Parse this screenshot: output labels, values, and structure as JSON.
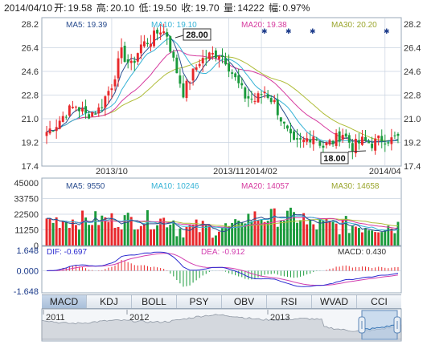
{
  "header": {
    "date": "2014/04/10",
    "open_label": "开:",
    "open": "19.58",
    "high_label": "高:",
    "high": "20.10",
    "low_label": "低:",
    "low": "19.50",
    "close_label": "收:",
    "close": "19.70",
    "volume_label": "量:",
    "volume": "14222",
    "change_label": "幅:",
    "change": "0.97%"
  },
  "colors": {
    "up": "#e8282b",
    "down": "#1a9a3c",
    "ma5": "#2a4d8f",
    "ma10": "#36b3d6",
    "ma20": "#d63a9e",
    "ma30": "#b0bd3a",
    "dif": "#2b2bd0",
    "dea": "#d23fb0",
    "grid": "#c9d3e0",
    "frame": "#9aa8b8"
  },
  "chart_data": [
    {
      "type": "candlestick",
      "name": "price",
      "legend": {
        "ma5": "MA5: 19.39",
        "ma10": "MA10: 19.10",
        "ma20": "MA20: 19.38",
        "ma30": "MA30: 20.20"
      },
      "y_ticks": [
        "28.2",
        "26.4",
        "24.6",
        "22.8",
        "21.0",
        "19.2",
        "17.4"
      ],
      "ylim": [
        17.4,
        28.2
      ],
      "x_ticks": [
        "2013/10",
        "2013/11",
        "2014/02",
        "2014/04"
      ],
      "annotations": {
        "max_label": "28.00",
        "min_label": "18.00"
      },
      "key_points": [
        {
          "i": 0,
          "c": 20.0
        },
        {
          "i": 3,
          "c": 20.6
        },
        {
          "i": 6,
          "c": 21.5
        },
        {
          "i": 9,
          "c": 22.0
        },
        {
          "i": 12,
          "c": 21.3
        },
        {
          "i": 16,
          "c": 21.7
        },
        {
          "i": 20,
          "c": 23.6
        },
        {
          "i": 23,
          "c": 26.0
        },
        {
          "i": 26,
          "c": 25.0
        },
        {
          "i": 29,
          "c": 26.6
        },
        {
          "i": 32,
          "c": 27.0
        },
        {
          "i": 35,
          "c": 27.8
        },
        {
          "i": 37,
          "c": 27.4
        },
        {
          "i": 39,
          "c": 25.4
        },
        {
          "i": 42,
          "c": 23.0
        },
        {
          "i": 44,
          "c": 24.0
        },
        {
          "i": 47,
          "c": 25.4
        },
        {
          "i": 50,
          "c": 25.8
        },
        {
          "i": 53,
          "c": 26.0
        },
        {
          "i": 55,
          "c": 25.5
        },
        {
          "i": 58,
          "c": 24.0
        },
        {
          "i": 61,
          "c": 22.7
        },
        {
          "i": 64,
          "c": 22.4
        },
        {
          "i": 67,
          "c": 23.1
        },
        {
          "i": 70,
          "c": 22.2
        },
        {
          "i": 73,
          "c": 20.4
        },
        {
          "i": 76,
          "c": 19.0
        },
        {
          "i": 79,
          "c": 19.3
        },
        {
          "i": 82,
          "c": 19.8
        },
        {
          "i": 85,
          "c": 18.9
        },
        {
          "i": 88,
          "c": 19.3
        },
        {
          "i": 91,
          "c": 19.9
        },
        {
          "i": 94,
          "c": 18.9
        },
        {
          "i": 97,
          "c": 19.3
        },
        {
          "i": 100,
          "c": 19.1
        },
        {
          "i": 103,
          "c": 19.5
        },
        {
          "i": 106,
          "c": 19.4
        },
        {
          "i": 108,
          "c": 19.7
        }
      ]
    },
    {
      "type": "bar",
      "name": "volume",
      "legend": {
        "ma5": "MA5: 9550",
        "ma10": "MA10: 10246",
        "ma20": "MA20: 14057",
        "ma30": "MA30: 14658"
      },
      "y_ticks": [
        "45000",
        "33750",
        "22500",
        "11250",
        "0"
      ],
      "ylim": [
        0,
        45000
      ]
    },
    {
      "type": "line",
      "name": "macd",
      "legend": {
        "dif": "DIF: -0.697",
        "dea": "DEA: -0.912",
        "macd": "MACD: 0.430"
      },
      "y_ticks": [
        "1.648",
        "0.000",
        "-1.648"
      ],
      "ylim": [
        -1.648,
        1.648
      ]
    },
    {
      "type": "area",
      "name": "overview",
      "x_ticks": [
        "2011",
        "2012",
        "2013"
      ]
    }
  ],
  "indicator_tabs": [
    "MACD",
    "KDJ",
    "BOLL",
    "PSY",
    "OBV",
    "RSI",
    "WVAD",
    "CCI"
  ],
  "active_tab": "MACD"
}
